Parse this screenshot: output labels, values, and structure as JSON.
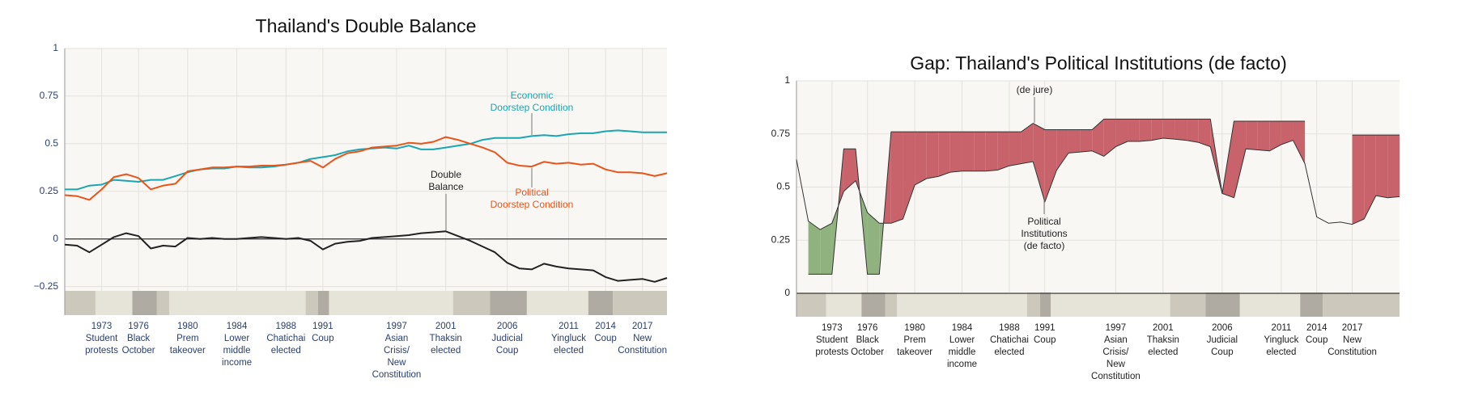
{
  "charts": [
    {
      "chart_data": {
        "type": "line",
        "title": "Thailand's Double Balance",
        "xlim": [
          1970,
          2019
        ],
        "ylim": [
          -0.4,
          1
        ],
        "yticks": [
          {
            "value": -0.25,
            "label": "−0.25"
          },
          0,
          0.25,
          0.5,
          0.75,
          1
        ],
        "grid": true,
        "tick_color": "#2a3f6e",
        "x": [
          1970,
          1971,
          1972,
          1973,
          1974,
          1975,
          1976,
          1977,
          1978,
          1979,
          1980,
          1981,
          1982,
          1983,
          1984,
          1985,
          1986,
          1987,
          1988,
          1989,
          1990,
          1991,
          1992,
          1993,
          1994,
          1995,
          1996,
          1997,
          1998,
          1999,
          2000,
          2001,
          2002,
          2003,
          2004,
          2005,
          2006,
          2007,
          2008,
          2009,
          2010,
          2011,
          2012,
          2013,
          2014,
          2015,
          2016,
          2017,
          2018,
          2019
        ],
        "series": [
          {
            "color": "#1aa6b0",
            "values": [
              0.26,
              0.26,
              0.28,
              0.285,
              0.31,
              0.305,
              0.3,
              0.31,
              0.31,
              0.33,
              0.35,
              0.365,
              0.37,
              0.37,
              0.38,
              0.375,
              0.375,
              0.38,
              0.39,
              0.4,
              0.42,
              0.43,
              0.44,
              0.46,
              0.47,
              0.475,
              0.48,
              0.475,
              0.49,
              0.47,
              0.47,
              0.48,
              0.49,
              0.5,
              0.52,
              0.53,
              0.53,
              0.53,
              0.54,
              0.545,
              0.54,
              0.55,
              0.555,
              0.555,
              0.565,
              0.57,
              0.565,
              0.56,
              0.56,
              0.56
            ]
          },
          {
            "color": "#e8541a",
            "values": [
              0.23,
              0.225,
              0.205,
              0.26,
              0.325,
              0.34,
              0.32,
              0.26,
              0.28,
              0.29,
              0.355,
              0.365,
              0.375,
              0.375,
              0.38,
              0.38,
              0.385,
              0.385,
              0.39,
              0.4,
              0.41,
              0.375,
              0.42,
              0.45,
              0.46,
              0.48,
              0.485,
              0.49,
              0.505,
              0.5,
              0.51,
              0.535,
              0.52,
              0.5,
              0.48,
              0.455,
              0.4,
              0.385,
              0.38,
              0.405,
              0.395,
              0.4,
              0.39,
              0.395,
              0.365,
              0.35,
              0.35,
              0.345,
              0.33,
              0.345
            ]
          },
          {
            "color": "#222222",
            "values": [
              -0.03,
              -0.035,
              -0.07,
              -0.03,
              0.01,
              0.03,
              0.015,
              -0.05,
              -0.035,
              -0.04,
              0.005,
              0,
              0.005,
              0,
              0,
              0.005,
              0.01,
              0.005,
              0,
              0.005,
              -0.01,
              -0.055,
              -0.025,
              -0.015,
              -0.01,
              0.005,
              0.01,
              0.015,
              0.02,
              0.03,
              0.035,
              0.04,
              0.015,
              -0.01,
              -0.04,
              -0.07,
              -0.125,
              -0.155,
              -0.16,
              -0.13,
              -0.145,
              -0.155,
              -0.16,
              -0.165,
              -0.2,
              -0.22,
              -0.215,
              -0.21,
              -0.225,
              -0.205
            ]
          }
        ],
        "annotations": [
          {
            "lines": [
              "Economic",
              "Doorstep Condition"
            ],
            "color": "#1aa6b0"
          },
          {
            "lines": [
              "Political",
              "Doorstep Condition"
            ],
            "color": "#e8541a"
          },
          {
            "lines": [
              "Double",
              "Balance"
            ],
            "color": "#222222"
          }
        ],
        "periods": [
          {
            "start": 1970,
            "end": 1972.5,
            "color": "#cdc8bc"
          },
          {
            "start": 1972.5,
            "end": 1975.5,
            "color": "#e6e3d8"
          },
          {
            "start": 1975.5,
            "end": 1977.5,
            "color": "#b0aba2"
          },
          {
            "start": 1977.5,
            "end": 1978.5,
            "color": "#cdc8bc"
          },
          {
            "start": 1978.5,
            "end": 1989.6,
            "color": "#e6e3d8"
          },
          {
            "start": 1989.6,
            "end": 1990.6,
            "color": "#cdc8bc"
          },
          {
            "start": 1990.6,
            "end": 1991.5,
            "color": "#b0aba2"
          },
          {
            "start": 1991.5,
            "end": 2001.6,
            "color": "#e6e3d8"
          },
          {
            "start": 2001.6,
            "end": 2004.6,
            "color": "#cdc8bc"
          },
          {
            "start": 2004.6,
            "end": 2007.6,
            "color": "#b0aba2"
          },
          {
            "start": 2007.6,
            "end": 2012.6,
            "color": "#e6e3d8"
          },
          {
            "start": 2012.6,
            "end": 2014.6,
            "color": "#b0aba2"
          },
          {
            "start": 2014.6,
            "end": 2019,
            "color": "#cdc8bc"
          }
        ],
        "events": [
          {
            "year": 1973,
            "lines": [
              "Student",
              "protests"
            ]
          },
          {
            "year": 1976,
            "lines": [
              "Black",
              "October"
            ]
          },
          {
            "year": 1980,
            "lines": [
              "Prem",
              "takeover"
            ]
          },
          {
            "year": 1984,
            "lines": [
              "Lower",
              "middle",
              "income"
            ]
          },
          {
            "year": 1988,
            "lines": [
              "Chatichai",
              "elected"
            ]
          },
          {
            "year": 1991,
            "lines": [
              "Coup"
            ]
          },
          {
            "year": 1997,
            "lines": [
              "Asian",
              "Crisis/",
              "New",
              "Constitution"
            ]
          },
          {
            "year": 2001,
            "lines": [
              "Thaksin",
              "elected"
            ]
          },
          {
            "year": 2006,
            "lines": [
              "Judicial",
              "Coup"
            ]
          },
          {
            "year": 2011,
            "lines": [
              "Yingluck",
              "elected"
            ]
          },
          {
            "year": 2014,
            "lines": [
              "Coup"
            ]
          },
          {
            "year": 2017,
            "lines": [
              "New",
              "Constitution"
            ]
          }
        ]
      }
    },
    {
      "chart_data": {
        "type": "range-area",
        "title": "Gap: Thailand's Political Institutions (de facto)",
        "xlim": [
          1970,
          2021
        ],
        "ylim": [
          -0.11,
          1
        ],
        "yticks": [
          0,
          0.25,
          0.5,
          0.75,
          1
        ],
        "grid": true,
        "tick_color": "#222222",
        "above_color": "#c9636b",
        "below_color": "#8fb27e",
        "x": [
          1970,
          1971,
          1972,
          1973,
          1974,
          1975,
          1976,
          1977,
          1978,
          1979,
          1980,
          1981,
          1982,
          1983,
          1984,
          1985,
          1986,
          1987,
          1988,
          1989,
          1990,
          1991,
          1992,
          1993,
          1994,
          1995,
          1996,
          1997,
          1998,
          1999,
          2000,
          2001,
          2002,
          2003,
          2004,
          2005,
          2006,
          2007,
          2008,
          2009,
          2010,
          2011,
          2012,
          2013,
          2014,
          2015,
          2016,
          2017,
          2018,
          2019,
          2020,
          2021
        ],
        "series": [
          {
            "values": [
              null,
              0.09,
              0.09,
              0.09,
              0.68,
              0.68,
              0.09,
              0.09,
              0.76,
              0.76,
              0.76,
              0.76,
              0.76,
              0.76,
              0.76,
              0.76,
              0.76,
              0.76,
              0.76,
              0.76,
              0.8,
              0.77,
              0.77,
              0.77,
              0.77,
              0.77,
              0.82,
              0.82,
              0.82,
              0.82,
              0.82,
              0.82,
              0.82,
              0.82,
              0.82,
              0.82,
              0.47,
              0.81,
              0.81,
              0.81,
              0.81,
              0.81,
              0.81,
              0.81,
              null,
              null,
              null,
              0.745,
              0.745,
              0.745,
              0.745,
              0.745
            ]
          },
          {
            "values": [
              0.63,
              0.34,
              0.3,
              0.33,
              0.48,
              0.53,
              0.38,
              0.33,
              0.33,
              0.35,
              0.51,
              0.54,
              0.55,
              0.57,
              0.575,
              0.575,
              0.575,
              0.58,
              0.6,
              0.61,
              0.62,
              0.43,
              0.58,
              0.66,
              0.665,
              0.67,
              0.645,
              0.69,
              0.715,
              0.715,
              0.72,
              0.73,
              0.725,
              0.72,
              0.71,
              0.69,
              0.47,
              0.45,
              0.68,
              0.675,
              0.67,
              0.7,
              0.72,
              0.61,
              0.36,
              0.33,
              0.335,
              0.325,
              0.35,
              0.46,
              0.45,
              0.455
            ]
          }
        ],
        "annotations": [
          {
            "lines": [
              "(de jure)"
            ],
            "color": "#222222"
          },
          {
            "lines": [
              "Political",
              "Institutions",
              "(de facto)"
            ],
            "color": "#222222"
          }
        ],
        "periods": [
          {
            "start": 1970,
            "end": 1972.5,
            "color": "#cdc8bc"
          },
          {
            "start": 1972.5,
            "end": 1975.5,
            "color": "#e6e3d8"
          },
          {
            "start": 1975.5,
            "end": 1977.5,
            "color": "#b0aba2"
          },
          {
            "start": 1977.5,
            "end": 1978.5,
            "color": "#cdc8bc"
          },
          {
            "start": 1978.5,
            "end": 1989.5,
            "color": "#e6e3d8"
          },
          {
            "start": 1989.5,
            "end": 1990.6,
            "color": "#cdc8bc"
          },
          {
            "start": 1990.6,
            "end": 1991.5,
            "color": "#b0aba2"
          },
          {
            "start": 1991.5,
            "end": 2001.6,
            "color": "#e6e3d8"
          },
          {
            "start": 2001.6,
            "end": 2004.6,
            "color": "#cdc8bc"
          },
          {
            "start": 2004.6,
            "end": 2007.5,
            "color": "#b0aba2"
          },
          {
            "start": 2007.5,
            "end": 2012.6,
            "color": "#e6e3d8"
          },
          {
            "start": 2012.6,
            "end": 2014.5,
            "color": "#b0aba2"
          },
          {
            "start": 2014.5,
            "end": 2021,
            "color": "#cdc8bc"
          }
        ],
        "events": [
          {
            "year": 1973,
            "lines": [
              "Student",
              "protests"
            ]
          },
          {
            "year": 1976,
            "lines": [
              "Black",
              "October"
            ]
          },
          {
            "year": 1980,
            "lines": [
              "Prem",
              "takeover"
            ]
          },
          {
            "year": 1984,
            "lines": [
              "Lower",
              "middle",
              "income"
            ]
          },
          {
            "year": 1988,
            "lines": [
              "Chatichai",
              "elected"
            ]
          },
          {
            "year": 1991,
            "lines": [
              "Coup"
            ]
          },
          {
            "year": 1997,
            "lines": [
              "Asian",
              "Crisis/",
              "New",
              "Constitution"
            ]
          },
          {
            "year": 2001,
            "lines": [
              "Thaksin",
              "elected"
            ]
          },
          {
            "year": 2006,
            "lines": [
              "Judicial",
              "Coup"
            ]
          },
          {
            "year": 2011,
            "lines": [
              "Yingluck",
              "elected"
            ]
          },
          {
            "year": 2014,
            "lines": [
              "Coup"
            ]
          },
          {
            "year": 2017,
            "lines": [
              "New",
              "Constitution"
            ]
          }
        ]
      }
    }
  ]
}
